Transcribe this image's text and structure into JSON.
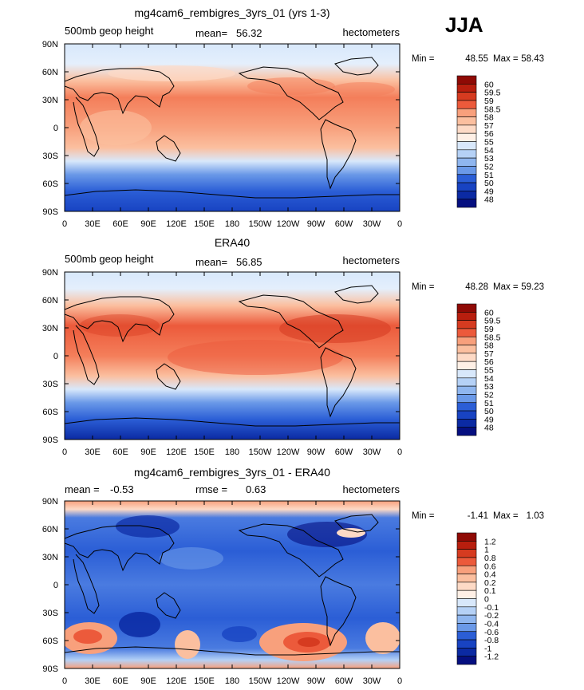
{
  "season_label": "JJA",
  "colors": {
    "positive_ramp": [
      "#fff0e6",
      "#fddac6",
      "#fbbf9f",
      "#f8a07c",
      "#f47e5a",
      "#ec5a3b",
      "#d63b20",
      "#b81e0e",
      "#8f0a05"
    ],
    "negative_ramp": [
      "#d8e8fb",
      "#b5d1f6",
      "#8fb6ef",
      "#6a99e8",
      "#4a7be0",
      "#2b5ed6",
      "#1843c2",
      "#0b2aa3",
      "#050f80"
    ],
    "coast": "#000000"
  },
  "chart_data": [
    {
      "type": "heatmap",
      "panel": "model",
      "title": "mg4cam6_rembigres_3yrs_01 (yrs 1-3)",
      "left_label": "500mb geop height",
      "center_label": "mean=",
      "center_value": "56.32",
      "right_label": "hectometers",
      "min_label": "Min =",
      "min_value": "48.55",
      "max_label": "Max =",
      "max_value": "58.43",
      "x_ticks": [
        "0",
        "30E",
        "60E",
        "90E",
        "120E",
        "150E",
        "180",
        "150W",
        "120W",
        "90W",
        "60W",
        "30W",
        "0"
      ],
      "y_ticks": [
        "90N",
        "60N",
        "30N",
        "0",
        "30S",
        "60S",
        "90S"
      ],
      "colorbar_labels": [
        "60",
        "59.5",
        "59",
        "58.5",
        "58",
        "57",
        "56",
        "55",
        "54",
        "53",
        "52",
        "51",
        "50",
        "49",
        "48"
      ]
    },
    {
      "type": "heatmap",
      "panel": "obs",
      "title": "ERA40",
      "left_label": "500mb geop height",
      "center_label": "mean=",
      "center_value": "56.85",
      "right_label": "hectometers",
      "min_label": "Min =",
      "min_value": "48.28",
      "max_label": "Max =",
      "max_value": "59.23",
      "x_ticks": [
        "0",
        "30E",
        "60E",
        "90E",
        "120E",
        "150E",
        "180",
        "150W",
        "120W",
        "90W",
        "60W",
        "30W",
        "0"
      ],
      "y_ticks": [
        "90N",
        "60N",
        "30N",
        "0",
        "30S",
        "60S",
        "90S"
      ],
      "colorbar_labels": [
        "60",
        "59.5",
        "59",
        "58.5",
        "58",
        "57",
        "56",
        "55",
        "54",
        "53",
        "52",
        "51",
        "50",
        "49",
        "48"
      ]
    },
    {
      "type": "heatmap",
      "panel": "diff",
      "title": "mg4cam6_rembigres_3yrs_01 - ERA40",
      "left_label": "mean =",
      "left_value": "-0.53",
      "center_label": "rmse =",
      "center_value": "0.63",
      "right_label": "hectometers",
      "min_label": "Min =",
      "min_value": "-1.41",
      "max_label": "Max =",
      "max_value": "1.03",
      "x_ticks": [
        "0",
        "30E",
        "60E",
        "90E",
        "120E",
        "150E",
        "180",
        "150W",
        "120W",
        "90W",
        "60W",
        "30W",
        "0"
      ],
      "y_ticks": [
        "90N",
        "60N",
        "30N",
        "0",
        "30S",
        "60S",
        "90S"
      ],
      "colorbar_labels": [
        "1.2",
        "1",
        "0.8",
        "0.6",
        "0.4",
        "0.2",
        "0.1",
        "0",
        "-0.1",
        "-0.2",
        "-0.4",
        "-0.6",
        "-0.8",
        "-1",
        "-1.2"
      ]
    }
  ]
}
